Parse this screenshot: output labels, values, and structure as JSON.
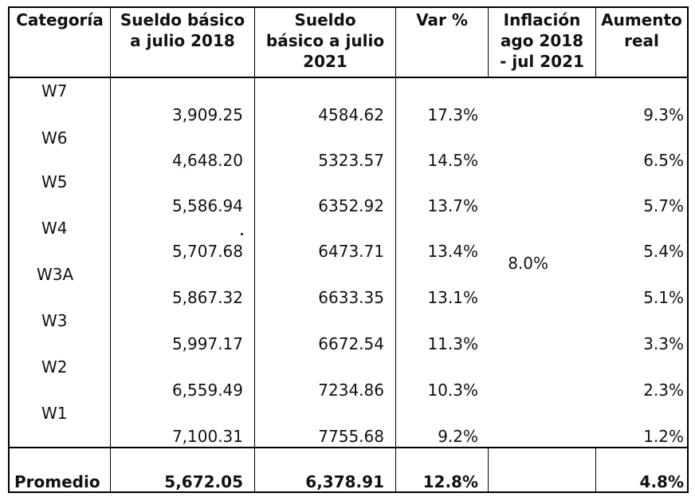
{
  "table": {
    "headers": [
      "Categoría",
      "Sueldo básico\na julio 2018",
      "Sueldo\nbásico a julio\n2021",
      "Var %",
      "Inflación\nago 2018\n- jul 2021",
      "Aumento\nreal"
    ],
    "rows": [
      {
        "categoria": "W7",
        "sueldo_2018": "3,909.25",
        "sueldo_2021": "4584.62",
        "var": "17.3%",
        "aumento_real": "9.3%"
      },
      {
        "categoria": "W6",
        "sueldo_2018": "4,648.20",
        "sueldo_2021": "5323.57",
        "var": "14.5%",
        "aumento_real": "6.5%"
      },
      {
        "categoria": "W5",
        "sueldo_2018": "5,586.94",
        "sueldo_2021": "6352.92",
        "var": "13.7%",
        "aumento_real": "5.7%"
      },
      {
        "categoria": "W4",
        "sueldo_2018": "5,707.68",
        "sueldo_2021": "6473.71",
        "var": "13.4%",
        "aumento_real": "5.4%"
      },
      {
        "categoria": "W3A",
        "sueldo_2018": "5,867.32",
        "sueldo_2021": "6633.35",
        "var": "13.1%",
        "aumento_real": "5.1%"
      },
      {
        "categoria": "W3",
        "sueldo_2018": "5,997.17",
        "sueldo_2021": "6672.54",
        "var": "11.3%",
        "aumento_real": "3.3%"
      },
      {
        "categoria": "W2",
        "sueldo_2018": "6,559.49",
        "sueldo_2021": "7234.86",
        "var": "10.3%",
        "aumento_real": "2.3%"
      },
      {
        "categoria": "W1",
        "sueldo_2018": "7,100.31",
        "sueldo_2021": "7755.68",
        "var": "9.2%",
        "aumento_real": "1.2%"
      }
    ],
    "inflacion": "8.0%",
    "promedio": {
      "label": "Promedio",
      "sueldo_2018": "5,672.05",
      "sueldo_2021": "6,378.91",
      "var": "12.8%",
      "aumento_real": "4.8%"
    }
  }
}
